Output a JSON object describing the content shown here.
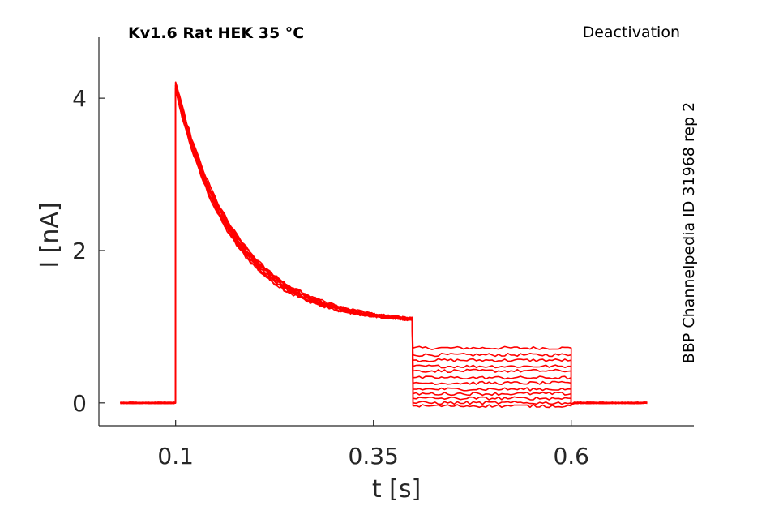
{
  "chart_data": {
    "type": "line",
    "title": "Kv1.6  Rat  HEK  35 °C",
    "protocol": "Deactivation",
    "source_label": "BBP Channelpedia ID 31968 rep 2",
    "xlabel": "t [s]",
    "ylabel": "I [nA]",
    "xlim": [
      0.003,
      0.755
    ],
    "ylim": [
      -0.3,
      4.8
    ],
    "x_ticks": [
      0.1,
      0.35,
      0.6
    ],
    "x_tick_labels": [
      "0.1",
      "0.35",
      "0.6"
    ],
    "y_ticks": [
      0,
      2,
      4
    ],
    "y_tick_labels": [
      "0",
      "2",
      "4"
    ],
    "grid": false,
    "color": "#ff0000",
    "protocol_times": {
      "start": 0.03,
      "step_on": 0.1,
      "step_off": 0.4,
      "tail_off": 0.6,
      "end": 0.7
    },
    "activation_step": {
      "peak_nA": 4.15,
      "end_nA": 1.1,
      "tau_s": 0.075
    },
    "tail_levels_nA": [
      0.72,
      0.63,
      0.56,
      0.48,
      0.42,
      0.33,
      0.26,
      0.18,
      0.12,
      0.06,
      0.0,
      -0.04
    ],
    "series_count": 12
  }
}
